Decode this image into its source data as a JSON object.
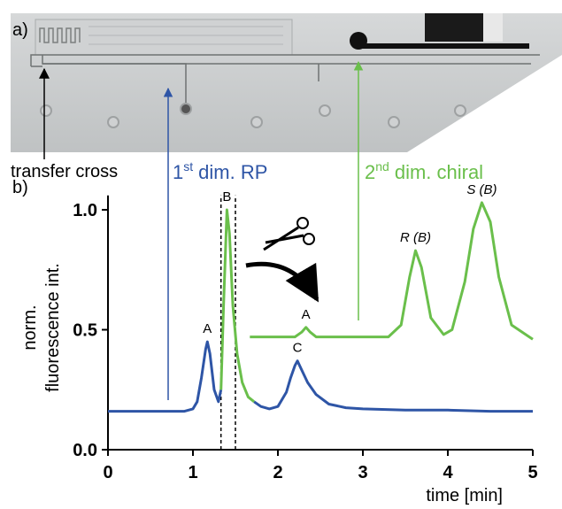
{
  "panel_a": {
    "label": "a)",
    "transfer_cross": "transfer cross",
    "first_dim": {
      "number": "1",
      "sup": "st",
      "text": "dim. RP"
    },
    "second_dim": {
      "number": "2",
      "sup": "nd",
      "text": "dim. chiral"
    }
  },
  "chart_data": {
    "type": "line",
    "panel_label": "b)",
    "xlabel": "time [min]",
    "ylabel": [
      "norm.",
      "fluorescence int."
    ],
    "xlim": [
      0,
      5
    ],
    "ylim": [
      0,
      1.06
    ],
    "xticks": [
      0,
      1,
      2,
      3,
      4,
      5
    ],
    "yticks": [
      {
        "value": 0,
        "label": "0.0"
      },
      0.5,
      {
        "value": 1,
        "label": "1.0"
      }
    ],
    "cut_window": [
      1.33,
      1.5
    ],
    "series": [
      {
        "color": "#2e55a6",
        "x": [
          0,
          0.5,
          0.9,
          1.0,
          1.05,
          1.1,
          1.15,
          1.17,
          1.2,
          1.25,
          1.3,
          1.33,
          1.5,
          1.72,
          1.8,
          1.9,
          2.0,
          2.1,
          2.15,
          2.2,
          2.23,
          2.27,
          2.35,
          2.45,
          2.6,
          2.8,
          3.0,
          3.5,
          4.0,
          4.5,
          5.0
        ],
        "values": [
          0.16,
          0.16,
          0.16,
          0.17,
          0.2,
          0.3,
          0.42,
          0.45,
          0.4,
          0.25,
          0.2,
          0.25,
          null,
          0.2,
          0.18,
          0.17,
          0.18,
          0.24,
          0.3,
          0.35,
          0.37,
          0.34,
          0.28,
          0.23,
          0.19,
          0.175,
          0.17,
          0.165,
          0.165,
          0.16,
          0.16
        ]
      },
      {
        "color": "#6abf4b",
        "x": [
          1.33,
          1.36,
          1.4,
          1.43,
          1.47,
          1.52,
          1.58,
          1.65,
          1.72
        ],
        "values": [
          0.25,
          0.6,
          1.0,
          0.9,
          0.6,
          0.4,
          0.28,
          0.22,
          0.2
        ]
      },
      {
        "color": "#6abf4b",
        "x": [
          1.67,
          2.2,
          2.28,
          2.33,
          2.38,
          2.45,
          3.3,
          3.45,
          3.55,
          3.62,
          3.69,
          3.8,
          3.95,
          4.05,
          4.2,
          4.3,
          4.4,
          4.5,
          4.6,
          4.75,
          5.0
        ],
        "values": [
          0.47,
          0.47,
          0.49,
          0.51,
          0.49,
          0.47,
          0.47,
          0.52,
          0.72,
          0.83,
          0.76,
          0.55,
          0.48,
          0.5,
          0.7,
          0.92,
          1.03,
          0.95,
          0.72,
          0.52,
          0.46
        ]
      }
    ],
    "peak_labels": [
      "A",
      "B",
      "C",
      "A",
      "R (B)",
      "S (B)"
    ]
  }
}
